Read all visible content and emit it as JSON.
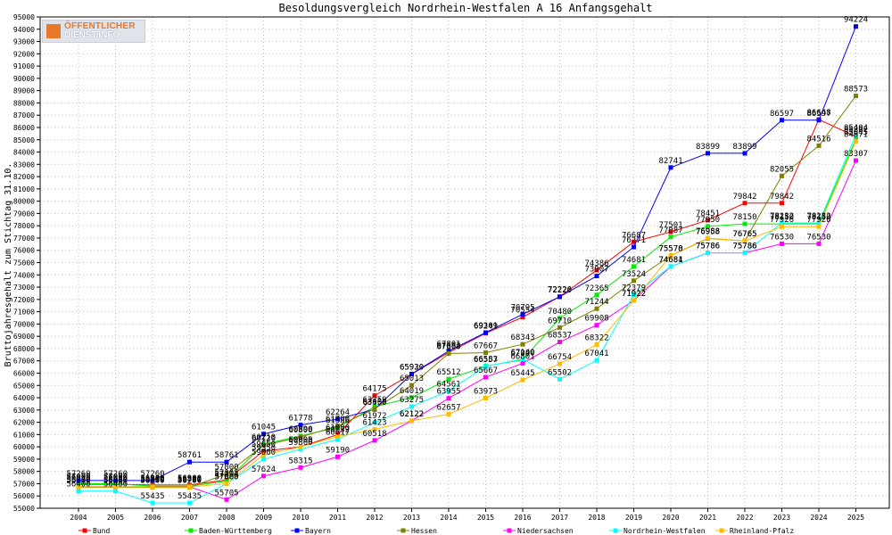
{
  "chart_data": {
    "type": "line",
    "title": "Besoldungsvergleich Nordrhein-Westfalen A 16 Anfangsgehalt",
    "ylabel": "Bruttojahresgehalt zum Stichtag 31.10.",
    "xlabel": "",
    "ylim": [
      55000,
      95000
    ],
    "ytick_step": 1000,
    "grid": true,
    "legend_position": "bottom",
    "x": [
      "2004",
      "2005",
      "2006",
      "2007",
      "2008",
      "2009",
      "2010",
      "2011",
      "2012",
      "2013",
      "2014",
      "2015",
      "2016",
      "2017",
      "2018",
      "2019",
      "2020",
      "2021",
      "2022",
      "2023",
      "2024",
      "2025"
    ],
    "series": [
      {
        "name": "Bund",
        "color": "#ff0000",
        "values": [
          56950,
          56950,
          56900,
          56900,
          57305,
          59650,
          60000,
          61000,
          64175,
          65920,
          67683,
          69249,
          70554,
          72226,
          74386,
          76687,
          77501,
          78451,
          79842,
          79842,
          86648,
          85262
        ]
      },
      {
        "name": "Baden-Württemberg",
        "color": "#00ee00",
        "values": [
          57000,
          57000,
          56800,
          56800,
          57204,
          60210,
          60890,
          61586,
          63259,
          64019,
          65512,
          66583,
          67080,
          70480,
          72365,
          74681,
          77087,
          77950,
          78150,
          78150,
          78150,
          85045
        ]
      },
      {
        "name": "Bayern",
        "color": "#0000ff",
        "values": [
          57260,
          57260,
          57260,
          58761,
          58761,
          61045,
          61778,
          62264,
          63050,
          65930,
          67801,
          69301,
          70795,
          72220,
          73907,
          76271,
          82741,
          83899,
          83899,
          86597,
          86597,
          94224
        ]
      },
      {
        "name": "Hessen",
        "color": "#808000",
        "values": [
          56700,
          56700,
          56700,
          56700,
          57800,
          60120,
          60800,
          61700,
          63100,
          65013,
          67600,
          67667,
          68343,
          69710,
          71244,
          73524,
          75570,
          76958,
          76765,
          82055,
          84516,
          88573
        ]
      },
      {
        "name": "Niedersachsen",
        "color": "#ff00ff",
        "values": [
          56750,
          56750,
          56750,
          56750,
          55705,
          57624,
          58315,
          59190,
          60518,
          62122,
          63955,
          65667,
          66801,
          68537,
          69908,
          71922,
          74681,
          75786,
          75786,
          76530,
          76530,
          83307
        ]
      },
      {
        "name": "Nordrhein-Westfalen",
        "color": "#00ffff",
        "values": [
          56400,
          56400,
          55435,
          55435,
          57000,
          59000,
          59800,
          60617,
          61972,
          63275,
          64561,
          66557,
          67140,
          65502,
          67041,
          72379,
          74684,
          75786,
          75786,
          78232,
          78232,
          85404
        ]
      },
      {
        "name": "Rheinland-Pfalz",
        "color": "#ffbb00",
        "values": [
          56730,
          56730,
          56730,
          56730,
          57000,
          59350,
          59995,
          60832,
          61423,
          62122,
          62657,
          63973,
          65445,
          66754,
          68322,
          71922,
          75578,
          76988,
          76765,
          77926,
          77926,
          84871
        ]
      }
    ]
  },
  "logo": {
    "line1": "ÖFFENTLICHER",
    "line2": "DIENST.INFO",
    "accent_color": "#e8782a"
  }
}
